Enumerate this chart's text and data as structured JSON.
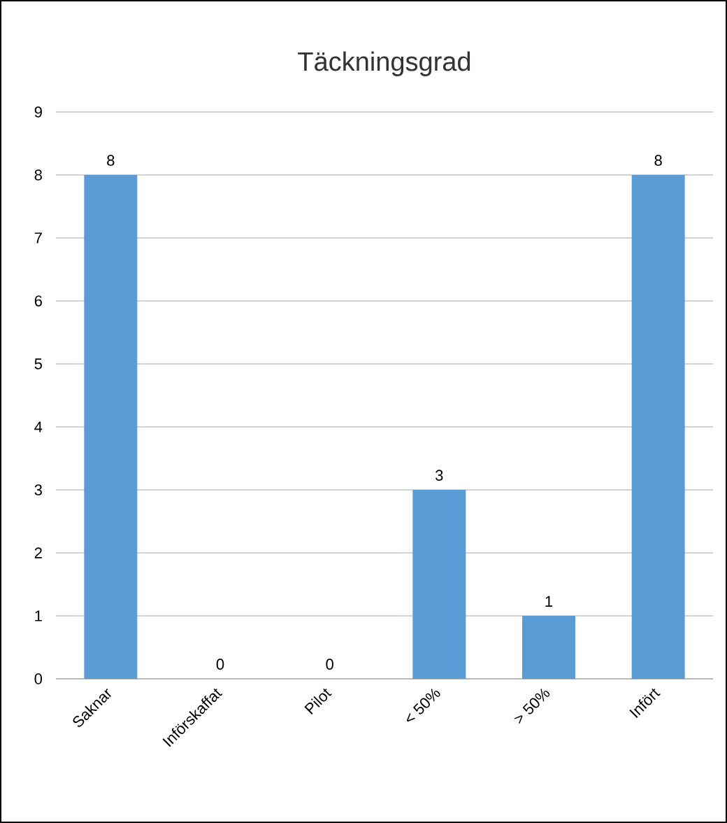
{
  "chart_data": {
    "type": "bar",
    "title": "Täckningsgrad",
    "categories": [
      "Saknar",
      "Införskaffat",
      "Pilot",
      "< 50%",
      "> 50%",
      "Infört"
    ],
    "values": [
      8,
      0,
      0,
      3,
      1,
      8
    ],
    "color": "#5b9bd5",
    "ylim": [
      0,
      9
    ],
    "yticks": [
      0,
      1,
      2,
      3,
      4,
      5,
      6,
      7,
      8,
      9
    ],
    "grid": "y",
    "data_labels": true
  }
}
